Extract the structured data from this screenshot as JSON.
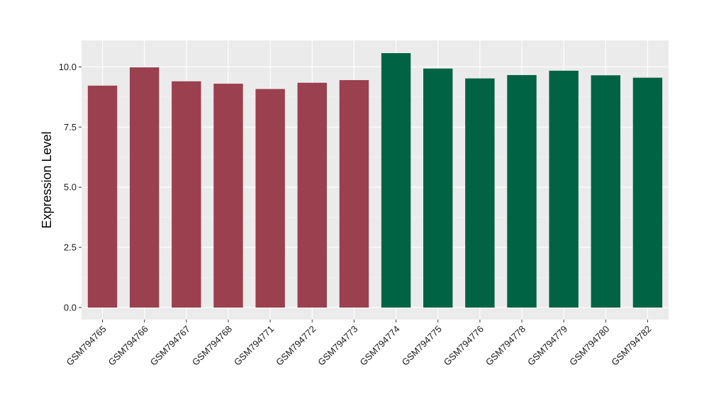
{
  "chart_data": {
    "type": "bar",
    "title": "",
    "xlabel": "",
    "ylabel": "Expression Level",
    "ylim": [
      -0.5,
      11.1
    ],
    "yticks": [
      0.0,
      2.5,
      5.0,
      7.5,
      10.0
    ],
    "ytick_labels": [
      "0.0",
      "2.5",
      "5.0",
      "7.5",
      "10.0"
    ],
    "grid": true,
    "legend": "none",
    "categories": [
      "GSM794765",
      "GSM794766",
      "GSM794767",
      "GSM794768",
      "GSM794771",
      "GSM794772",
      "GSM794773",
      "GSM794774",
      "GSM794775",
      "GSM794776",
      "GSM794778",
      "GSM794779",
      "GSM794780",
      "GSM794782"
    ],
    "values": [
      9.22,
      9.98,
      9.4,
      9.3,
      9.08,
      9.34,
      9.45,
      10.57,
      9.93,
      9.52,
      9.66,
      9.84,
      9.65,
      9.55
    ],
    "bar_colors": [
      "#9a404f",
      "#9a404f",
      "#9a404f",
      "#9a404f",
      "#9a404f",
      "#9a404f",
      "#9a404f",
      "#006344",
      "#006344",
      "#006344",
      "#006344",
      "#006344",
      "#006344",
      "#006344"
    ]
  },
  "colors": {
    "panel_background": "#ebebeb",
    "grid_major": "#ffffff",
    "grid_minor": "#f5f5f5",
    "tick_mark": "#333333"
  }
}
